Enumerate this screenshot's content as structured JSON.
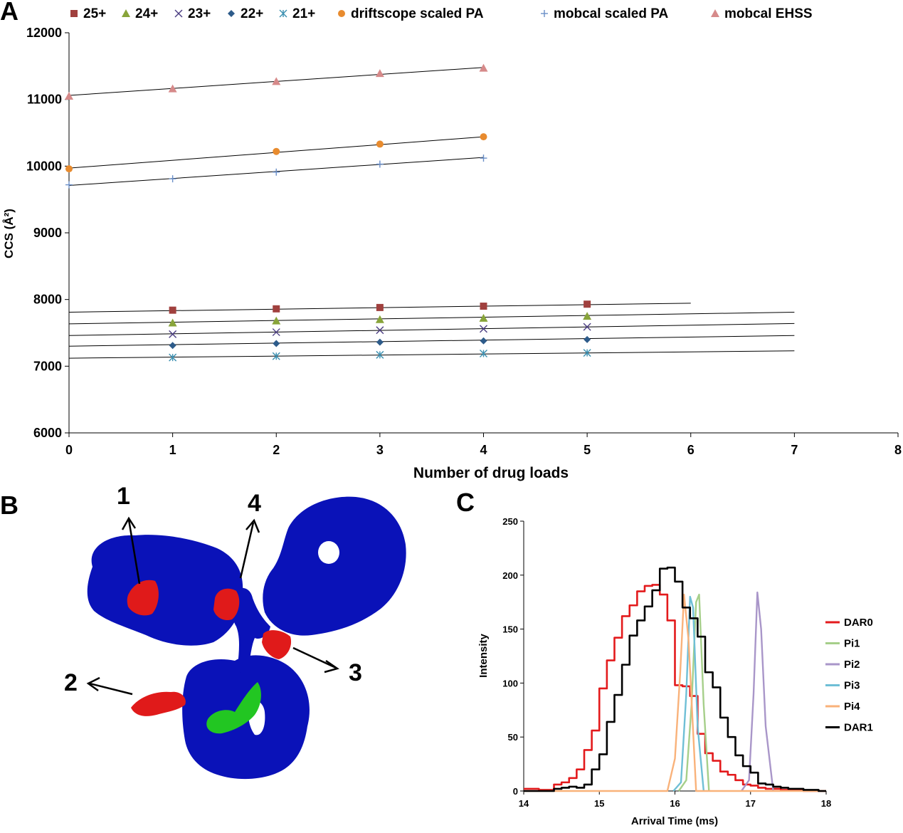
{
  "panels": {
    "a": "A",
    "b": "B",
    "c": "C"
  },
  "chart_data": [
    {
      "type": "scatter",
      "panel": "A",
      "xlabel": "Number of drug loads",
      "ylabel": "CCS (Å²)",
      "xlim": [
        0,
        8
      ],
      "ylim": [
        6000,
        12000
      ],
      "xticks": [
        0,
        1,
        2,
        3,
        4,
        5,
        6,
        7,
        8
      ],
      "yticks": [
        6000,
        7000,
        8000,
        9000,
        10000,
        11000,
        12000
      ],
      "legend_position": "top",
      "series": [
        {
          "name": "25+",
          "color": "#a0403e",
          "marker": "square",
          "x": [
            1,
            2,
            3,
            4,
            5
          ],
          "y": [
            7840,
            7860,
            7880,
            7900,
            7930
          ],
          "trend": {
            "x": [
              0,
              6
            ],
            "y": [
              7810,
              7945
            ]
          }
        },
        {
          "name": "24+",
          "color": "#88a43a",
          "marker": "triangle",
          "x": [
            1,
            2,
            3,
            4,
            5
          ],
          "y": [
            7650,
            7680,
            7700,
            7720,
            7750
          ],
          "trend": {
            "x": [
              0,
              7
            ],
            "y": [
              7635,
              7810
            ]
          }
        },
        {
          "name": "23+",
          "color": "#4b3d82",
          "marker": "x",
          "x": [
            1,
            2,
            3,
            4,
            5
          ],
          "y": [
            7480,
            7510,
            7540,
            7560,
            7590
          ],
          "trend": {
            "x": [
              0,
              7
            ],
            "y": [
              7460,
              7640
            ]
          }
        },
        {
          "name": "22+",
          "color": "#2d5b8a",
          "marker": "diamond",
          "x": [
            1,
            2,
            3,
            4,
            5
          ],
          "y": [
            7310,
            7340,
            7360,
            7380,
            7400
          ],
          "trend": {
            "x": [
              0,
              7
            ],
            "y": [
              7300,
              7460
            ]
          }
        },
        {
          "name": "21+",
          "color": "#3a8fb0",
          "marker": "asterisk",
          "x": [
            1,
            2,
            3,
            4,
            5
          ],
          "y": [
            7130,
            7150,
            7170,
            7190,
            7200
          ],
          "trend": {
            "x": [
              0,
              7
            ],
            "y": [
              7120,
              7230
            ]
          }
        },
        {
          "name": "driftscope scaled PA",
          "color": "#e88b2e",
          "marker": "circle",
          "x": [
            0,
            2,
            3,
            4
          ],
          "y": [
            9960,
            10220,
            10330,
            10440
          ],
          "trend": {
            "x": [
              0,
              4
            ],
            "y": [
              9970,
              10440
            ]
          }
        },
        {
          "name": "mobcal scaled PA",
          "color": "#6a8fc8",
          "marker": "plus",
          "x": [
            0,
            1,
            2,
            3,
            4
          ],
          "y": [
            9720,
            9810,
            9910,
            10030,
            10120
          ],
          "trend": {
            "x": [
              0,
              4
            ],
            "y": [
              9710,
              10130
            ]
          }
        },
        {
          "name": "mobcal EHSS",
          "color": "#d68a8a",
          "marker": "triangle",
          "x": [
            0,
            1,
            2,
            3,
            4
          ],
          "y": [
            11050,
            11160,
            11270,
            11390,
            11470
          ],
          "trend": {
            "x": [
              0,
              4
            ],
            "y": [
              11060,
              11480
            ]
          }
        }
      ]
    },
    {
      "type": "line",
      "panel": "C",
      "xlabel": "Arrival Time (ms)",
      "ylabel": "Intensity",
      "xlim": [
        14,
        18
      ],
      "ylim": [
        0,
        250
      ],
      "xticks": [
        14,
        15,
        16,
        17,
        18
      ],
      "yticks": [
        0,
        50,
        100,
        150,
        200,
        250
      ],
      "legend_position": "right",
      "series": [
        {
          "name": "DAR0",
          "color": "#e31a1c",
          "step": true,
          "x": [
            14.0,
            14.1,
            14.2,
            14.3,
            14.4,
            14.5,
            14.6,
            14.7,
            14.8,
            14.9,
            15.0,
            15.1,
            15.2,
            15.3,
            15.4,
            15.5,
            15.6,
            15.7,
            15.8,
            15.9,
            16.0,
            16.1,
            16.2,
            16.3,
            16.4,
            16.5,
            16.6,
            16.7,
            16.8,
            16.9,
            17.0,
            17.1,
            17.2,
            17.3,
            17.4,
            17.5,
            17.6,
            17.7,
            17.8,
            17.9
          ],
          "y": [
            2,
            2,
            1,
            1,
            6,
            8,
            12,
            20,
            38,
            56,
            95,
            121,
            142,
            162,
            172,
            185,
            190,
            191,
            182,
            158,
            98,
            97,
            88,
            53,
            35,
            28,
            18,
            15,
            10,
            6,
            5,
            3,
            2,
            2,
            1,
            1,
            1,
            0,
            0,
            0
          ]
        },
        {
          "name": "Pi1",
          "color": "#a6cf8a",
          "step": false,
          "x": [
            16.05,
            16.15,
            16.22,
            16.28,
            16.32,
            16.38,
            16.45
          ],
          "y": [
            0,
            10,
            80,
            175,
            182,
            80,
            0
          ]
        },
        {
          "name": "Pi2",
          "color": "#a996c9",
          "step": false,
          "x": [
            16.88,
            16.98,
            17.04,
            17.09,
            17.14,
            17.2,
            17.3
          ],
          "y": [
            0,
            10,
            90,
            184,
            150,
            60,
            0
          ]
        },
        {
          "name": "Pi3",
          "color": "#6fbfd6",
          "step": false,
          "x": [
            15.98,
            16.08,
            16.15,
            16.2,
            16.24,
            16.3,
            16.38
          ],
          "y": [
            0,
            8,
            90,
            180,
            170,
            60,
            0
          ]
        },
        {
          "name": "Pi4",
          "color": "#f9b27a",
          "step": false,
          "x": [
            14.0,
            15.6,
            15.9,
            16.0,
            16.07,
            16.12,
            16.18,
            16.28,
            18.0
          ],
          "y": [
            0,
            0,
            0,
            30,
            110,
            182,
            140,
            0,
            0
          ]
        },
        {
          "name": "DAR1",
          "color": "#000000",
          "step": true,
          "x": [
            14.0,
            14.1,
            14.2,
            14.3,
            14.4,
            14.5,
            14.6,
            14.7,
            14.8,
            14.9,
            15.0,
            15.1,
            15.2,
            15.3,
            15.4,
            15.5,
            15.6,
            15.7,
            15.8,
            15.9,
            16.0,
            16.1,
            16.2,
            16.3,
            16.4,
            16.5,
            16.6,
            16.7,
            16.8,
            16.9,
            17.0,
            17.1,
            17.2,
            17.3,
            17.4,
            17.5,
            17.6,
            17.7,
            17.8,
            17.9
          ],
          "y": [
            0,
            0,
            0,
            0,
            2,
            3,
            4,
            3,
            6,
            20,
            34,
            64,
            89,
            117,
            144,
            158,
            171,
            186,
            206,
            207,
            194,
            170,
            160,
            143,
            110,
            96,
            68,
            50,
            33,
            23,
            17,
            7,
            6,
            4,
            3,
            2,
            2,
            1,
            1,
            0
          ]
        }
      ]
    }
  ],
  "structure": {
    "site_labels": [
      "1",
      "2",
      "3",
      "4"
    ],
    "colors": {
      "protein": "#0a12b8",
      "drug": "#e01a1a",
      "glycan": "#22c622"
    }
  }
}
